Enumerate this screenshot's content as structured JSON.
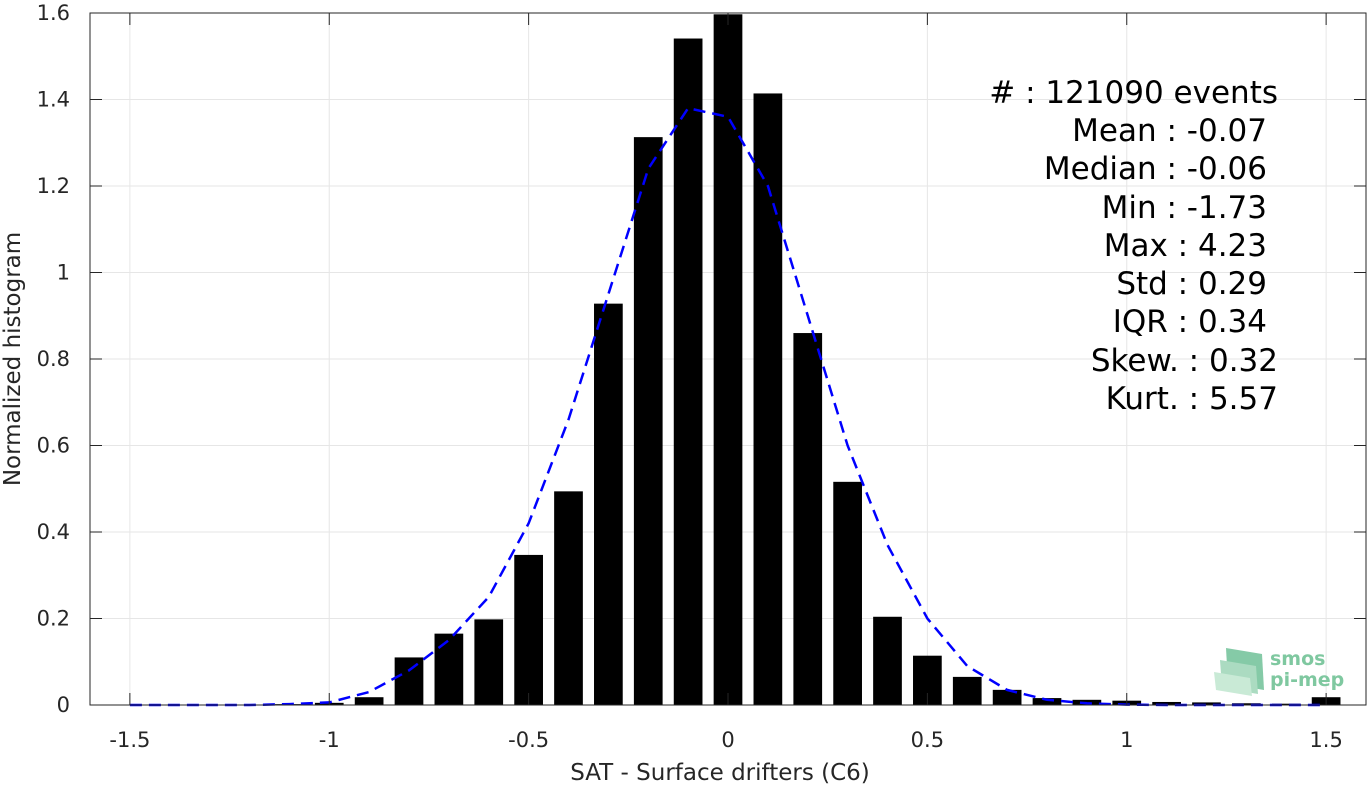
{
  "chart_data": {
    "type": "bar",
    "xlabel": "SAT - Surface drifters (C6)",
    "ylabel": "Normalized histogram",
    "xlim": [
      -1.6,
      1.6
    ],
    "ylim": [
      0,
      1.6
    ],
    "xticks": [
      "-1.5",
      "-1",
      "-0.5",
      "0",
      "0.5",
      "1",
      "1.5"
    ],
    "xtick_values": [
      -1.5,
      -1,
      -0.5,
      0,
      0.5,
      1,
      1.5
    ],
    "yticks": [
      "0",
      "0.2",
      "0.4",
      "0.6",
      "0.8",
      "1",
      "1.2",
      "1.4",
      "1.6"
    ],
    "ytick_values": [
      0,
      0.2,
      0.4,
      0.6,
      0.8,
      1,
      1.2,
      1.4,
      1.6
    ],
    "grid": true,
    "bar_color": "#000000",
    "bars": {
      "x": [
        -1.5,
        -1.4,
        -1.3,
        -1.2,
        -1.1,
        -1.0,
        -0.9,
        -0.8,
        -0.7,
        -0.6,
        -0.5,
        -0.4,
        -0.3,
        -0.2,
        -0.1,
        0.0,
        0.1,
        0.2,
        0.3,
        0.4,
        0.5,
        0.6,
        0.7,
        0.8,
        0.9,
        1.0,
        1.1,
        1.2,
        1.3,
        1.4,
        1.5
      ],
      "values": [
        0.001,
        0.001,
        0.001,
        0.001,
        0.002,
        0.005,
        0.018,
        0.11,
        0.165,
        0.198,
        0.347,
        0.494,
        0.928,
        1.313,
        1.541,
        1.597,
        1.414,
        0.86,
        0.516,
        0.204,
        0.114,
        0.065,
        0.035,
        0.016,
        0.012,
        0.01,
        0.007,
        0.006,
        0.004,
        0.003,
        0.018
      ]
    },
    "fit": {
      "color": "#0000ff",
      "style": "dashed",
      "x": [
        -1.5,
        -1.4,
        -1.3,
        -1.2,
        -1.1,
        -1.0,
        -0.9,
        -0.8,
        -0.7,
        -0.6,
        -0.5,
        -0.4,
        -0.3,
        -0.2,
        -0.1,
        0.0,
        0.1,
        0.2,
        0.3,
        0.4,
        0.5,
        0.6,
        0.7,
        0.8,
        0.9,
        1.0,
        1.1,
        1.2,
        1.3,
        1.4,
        1.5
      ],
      "y": [
        0.0,
        0.0,
        0.0,
        0.0,
        0.002,
        0.006,
        0.03,
        0.08,
        0.15,
        0.25,
        0.42,
        0.66,
        0.95,
        1.24,
        1.38,
        1.36,
        1.2,
        0.9,
        0.6,
        0.37,
        0.2,
        0.09,
        0.035,
        0.012,
        0.004,
        0.001,
        0.0,
        0.0,
        0.0,
        0.0,
        0.0
      ]
    }
  },
  "stats": {
    "line1": "#  : 121090 events",
    "line2": "Mean : -0.07",
    "line3": "Median : -0.06",
    "line4": "Min : -1.73",
    "line5": "Max : 4.23",
    "line6": "Std : 0.29",
    "line7": "IQR : 0.34",
    "line8": "Skew. : 0.32",
    "line9": "Kurt. : 5.57"
  },
  "logo": {
    "line1": "smos",
    "line2": "pi-mep",
    "color": "#7fc8a0"
  }
}
